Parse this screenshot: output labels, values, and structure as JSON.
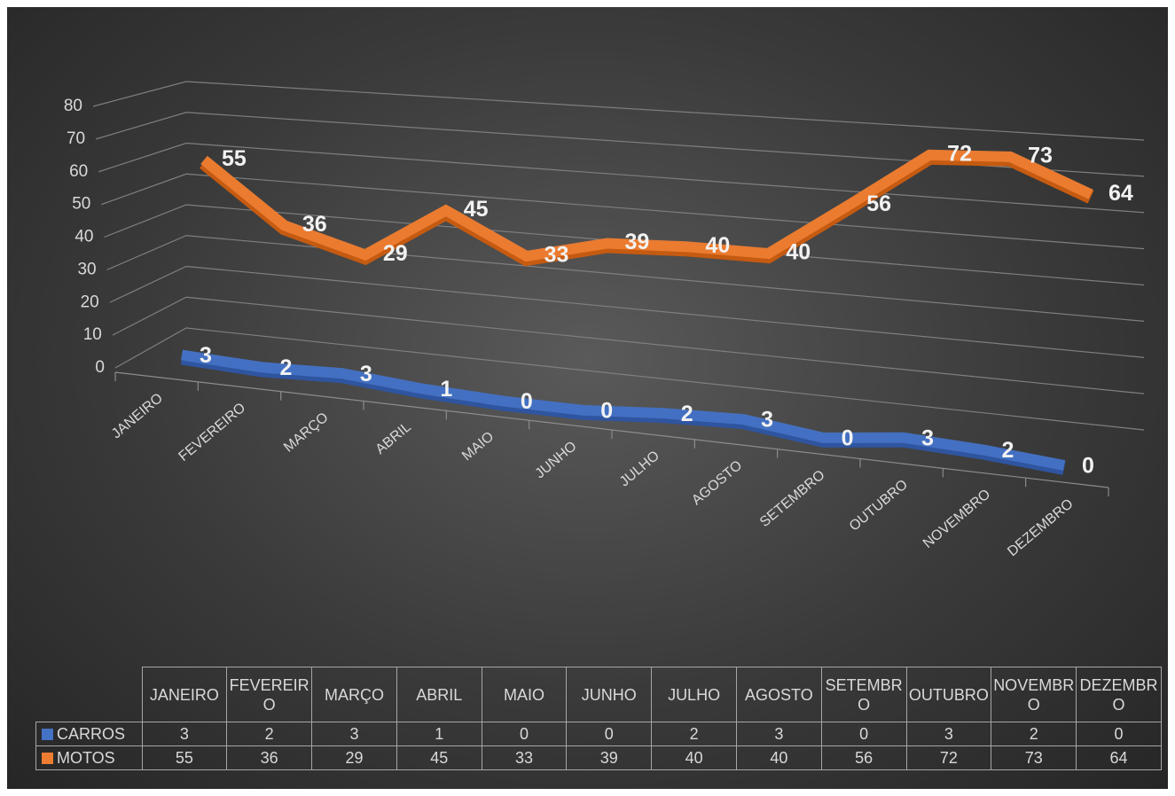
{
  "chart_data": {
    "type": "line",
    "categories": [
      "JANEIRO",
      "FEVEREIRO",
      "MARÇO",
      "ABRIL",
      "MAIO",
      "JUNHO",
      "JULHO",
      "AGOSTO",
      "SETEMBRO",
      "OUTUBRO",
      "NOVEMBRO",
      "DEZEMBRO"
    ],
    "series": [
      {
        "name": "CARROS",
        "color": "#4472c4",
        "values": [
          3,
          2,
          3,
          1,
          0,
          0,
          2,
          3,
          0,
          3,
          2,
          0
        ]
      },
      {
        "name": "MOTOS",
        "color": "#ed7d31",
        "values": [
          55,
          36,
          29,
          45,
          33,
          39,
          40,
          40,
          56,
          72,
          73,
          64
        ]
      }
    ],
    "ylim": [
      0,
      80
    ],
    "yticks": [
      0,
      10,
      20,
      30,
      40,
      50,
      60,
      70,
      80
    ],
    "grid": true
  }
}
